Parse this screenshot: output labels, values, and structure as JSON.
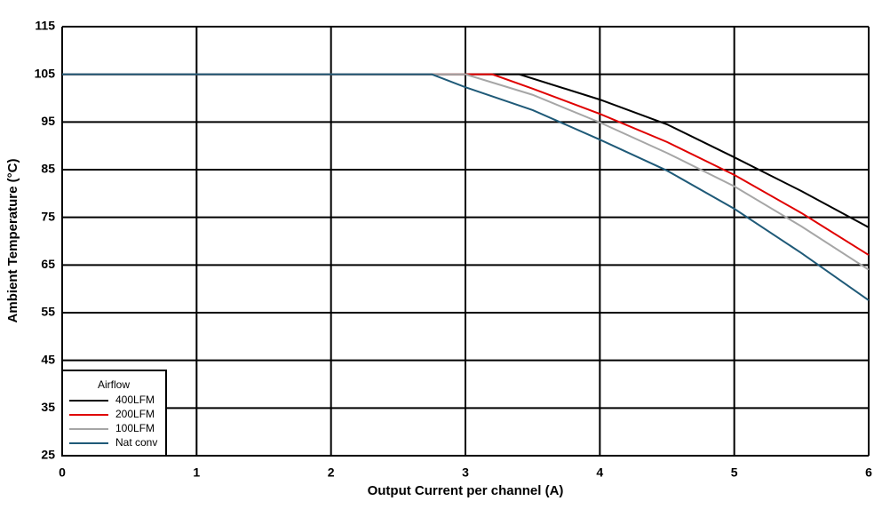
{
  "chart_data": {
    "type": "line",
    "x_label": "Output Current per channel (A)",
    "y_label": "Ambient Temperature (°C)",
    "xlim": [
      0,
      6
    ],
    "xticks": [
      0,
      1,
      2,
      3,
      4,
      5,
      6
    ],
    "ylim": [
      25,
      115
    ],
    "yticks": [
      25,
      35,
      45,
      55,
      65,
      75,
      85,
      95,
      105,
      115
    ],
    "grid": true,
    "legend_title": "Airflow",
    "legend_position": "lower left",
    "series": [
      {
        "name": "400LFM",
        "color": "#000000",
        "x": [
          0,
          3.4,
          4,
          4.5,
          5,
          5.5,
          6
        ],
        "values": [
          105,
          105,
          99.7,
          94.5,
          87.6,
          80.5,
          72.9
        ]
      },
      {
        "name": "200LFM",
        "color": "#e00000",
        "x": [
          0,
          3.2,
          3.5,
          4,
          4.5,
          5,
          5.5,
          6
        ],
        "values": [
          105,
          105,
          102,
          96.7,
          90.8,
          83.9,
          75.9,
          67.1
        ]
      },
      {
        "name": "100LFM",
        "color": "#a6a6a6",
        "x": [
          0,
          3.0,
          3.5,
          4,
          4.5,
          5,
          5.5,
          6
        ],
        "values": [
          105,
          105,
          100.7,
          94.9,
          88.5,
          81.5,
          73.1,
          64
        ]
      },
      {
        "name": "Nat conv",
        "color": "#1f5a78",
        "x": [
          0,
          2.75,
          3,
          3.5,
          4,
          4.5,
          5,
          5.5,
          6
        ],
        "values": [
          105,
          105,
          102.3,
          97.5,
          91.3,
          84.8,
          76.8,
          67.5,
          57.6
        ]
      }
    ]
  }
}
